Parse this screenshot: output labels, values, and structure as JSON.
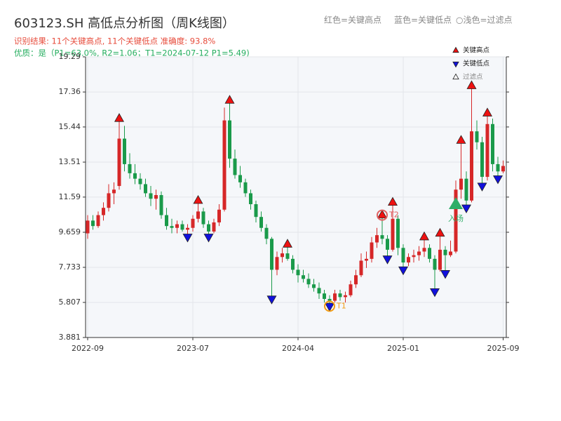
{
  "chart_data": {
    "type": "candlestick",
    "title": "603123.SH 高低点分析图（周K线图）",
    "subtitle": "识别结果: 11个关键高点, 11个关键低点   准确度: 93.8%",
    "quality": "优质：是（P1=63.0%, R2=1.06；T1=2024-07-12 P1=5.49)",
    "notes": [
      "红色=关键高点",
      "蓝色=关键低点",
      "○浅色=过滤点"
    ],
    "up_color": "#d62728",
    "down_color": "#1a9a4a",
    "grid": true,
    "ylim": [
      3.881,
      19.29
    ],
    "yticks": [
      3.881,
      5.807,
      7.733,
      9.659,
      11.59,
      13.51,
      15.44,
      17.36,
      19.29
    ],
    "categories": [
      "2022-09",
      null,
      null,
      null,
      null,
      null,
      null,
      null,
      null,
      null,
      null,
      null,
      null,
      null,
      null,
      null,
      null,
      null,
      null,
      null,
      "2023-07",
      null,
      null,
      null,
      null,
      null,
      null,
      null,
      null,
      null,
      null,
      null,
      null,
      null,
      null,
      null,
      null,
      null,
      null,
      null,
      "2024-04",
      null,
      null,
      null,
      null,
      null,
      null,
      null,
      null,
      null,
      null,
      null,
      null,
      null,
      null,
      null,
      null,
      null,
      null,
      null,
      "2025-01",
      null,
      null,
      null,
      null,
      null,
      null,
      null,
      null,
      null,
      null,
      null,
      null,
      null,
      null,
      null,
      null,
      null,
      null,
      "2025-09"
    ],
    "open": [
      9.6,
      10.3,
      10.0,
      10.6,
      11.0,
      11.8,
      12.2,
      14.8,
      13.4,
      12.9,
      12.6,
      12.3,
      11.8,
      11.5,
      11.7,
      10.6,
      10.0,
      9.9,
      10.1,
      9.8,
      9.9,
      10.4,
      10.8,
      10.1,
      9.7,
      10.2,
      10.9,
      15.8,
      13.7,
      12.8,
      12.4,
      11.8,
      11.2,
      10.5,
      9.9,
      9.3,
      7.6,
      8.3,
      8.5,
      8.2,
      7.6,
      7.3,
      7.1,
      6.8,
      6.6,
      6.3,
      6.0,
      5.9,
      6.3,
      6.1,
      6.2,
      6.8,
      7.3,
      8.1,
      8.2,
      9.1,
      9.5,
      9.3,
      8.7,
      10.4,
      8.8,
      8.0,
      8.3,
      8.4,
      8.6,
      8.8,
      8.2,
      7.6,
      8.7,
      8.4,
      8.6,
      12.0,
      12.6,
      11.4,
      15.2,
      14.6,
      12.7,
      15.6,
      13.4,
      13.0
    ],
    "high": [
      10.6,
      10.6,
      10.8,
      11.3,
      12.3,
      12.4,
      15.9,
      15.5,
      14.0,
      13.4,
      12.9,
      12.6,
      12.2,
      12.0,
      11.9,
      11.0,
      10.4,
      10.3,
      10.3,
      10.1,
      10.6,
      11.4,
      11.0,
      10.3,
      10.4,
      11.2,
      16.5,
      16.9,
      14.2,
      13.3,
      12.6,
      12.0,
      11.4,
      10.8,
      10.1,
      9.4,
      8.6,
      8.8,
      9.0,
      8.4,
      7.9,
      7.6,
      7.4,
      7.1,
      6.9,
      6.5,
      6.2,
      6.5,
      6.5,
      6.4,
      7.0,
      7.6,
      8.5,
      8.6,
      9.4,
      9.9,
      10.6,
      9.5,
      11.3,
      10.6,
      9.0,
      8.5,
      8.7,
      8.9,
      9.4,
      9.0,
      8.4,
      9.6,
      8.9,
      9.2,
      12.5,
      14.7,
      13.0,
      17.7,
      15.8,
      14.9,
      16.2,
      15.9,
      13.8,
      13.6
    ],
    "low": [
      9.3,
      9.8,
      9.9,
      10.3,
      10.8,
      11.2,
      12.0,
      13.0,
      12.6,
      12.3,
      12.0,
      11.6,
      11.1,
      10.9,
      10.4,
      9.8,
      9.6,
      9.6,
      9.7,
      9.4,
      9.7,
      10.2,
      9.9,
      9.4,
      9.6,
      10.0,
      10.8,
      13.2,
      12.6,
      12.1,
      11.6,
      10.9,
      10.2,
      9.7,
      9.0,
      6.0,
      7.3,
      8.0,
      8.1,
      7.4,
      6.9,
      6.9,
      6.6,
      6.4,
      6.0,
      5.8,
      5.6,
      5.8,
      5.9,
      5.8,
      6.1,
      6.6,
      7.2,
      7.7,
      8.0,
      8.8,
      9.0,
      8.2,
      8.6,
      8.4,
      7.6,
      7.8,
      8.0,
      8.1,
      8.3,
      8.0,
      6.4,
      7.5,
      7.4,
      8.3,
      8.5,
      11.5,
      11.0,
      11.3,
      14.2,
      12.2,
      12.5,
      13.0,
      12.6,
      12.9
    ],
    "close": [
      10.3,
      10.0,
      10.6,
      11.0,
      11.8,
      12.0,
      14.8,
      13.4,
      12.9,
      12.6,
      12.3,
      11.8,
      11.5,
      11.7,
      10.6,
      10.0,
      9.9,
      10.1,
      9.8,
      9.9,
      10.4,
      10.8,
      10.1,
      9.7,
      10.2,
      10.9,
      15.8,
      13.7,
      12.8,
      12.4,
      11.8,
      11.2,
      10.5,
      9.9,
      9.3,
      7.6,
      8.3,
      8.5,
      8.2,
      7.6,
      7.3,
      7.1,
      6.8,
      6.6,
      6.3,
      6.0,
      5.9,
      6.3,
      6.1,
      6.2,
      6.8,
      7.3,
      8.1,
      8.2,
      9.1,
      9.5,
      9.3,
      8.7,
      10.4,
      8.8,
      8.0,
      8.3,
      8.4,
      8.6,
      8.8,
      8.2,
      7.6,
      8.7,
      8.4,
      8.6,
      12.0,
      12.6,
      11.4,
      15.2,
      14.6,
      12.7,
      15.6,
      13.4,
      13.0,
      13.3
    ],
    "series": [
      {
        "name": "关键高点",
        "color": "#ee1111",
        "marker": "up",
        "values": [
          null,
          null,
          null,
          null,
          null,
          null,
          15.9,
          null,
          null,
          null,
          null,
          null,
          null,
          null,
          null,
          null,
          null,
          null,
          null,
          null,
          null,
          11.4,
          null,
          null,
          null,
          null,
          null,
          16.9,
          null,
          null,
          null,
          null,
          null,
          null,
          null,
          null,
          null,
          null,
          9,
          null,
          null,
          null,
          null,
          null,
          null,
          null,
          null,
          null,
          null,
          null,
          null,
          null,
          null,
          null,
          null,
          null,
          10.6,
          null,
          11.3,
          null,
          null,
          null,
          null,
          null,
          9.4,
          null,
          null,
          9.6,
          null,
          null,
          null,
          14.7,
          null,
          17.7,
          null,
          null,
          16.2,
          null,
          null,
          null
        ]
      },
      {
        "name": "关键低点",
        "color": "#1111dd",
        "marker": "down",
        "values": [
          null,
          null,
          null,
          null,
          null,
          null,
          null,
          null,
          null,
          null,
          null,
          null,
          null,
          null,
          null,
          null,
          null,
          null,
          null,
          9.4,
          null,
          null,
          null,
          9.4,
          null,
          null,
          null,
          null,
          null,
          null,
          null,
          null,
          null,
          null,
          null,
          6,
          null,
          null,
          null,
          null,
          null,
          null,
          null,
          null,
          null,
          null,
          5.6,
          null,
          null,
          null,
          null,
          null,
          null,
          null,
          null,
          null,
          null,
          8.2,
          null,
          null,
          7.6,
          null,
          null,
          null,
          null,
          null,
          6.4,
          null,
          7.4,
          null,
          null,
          null,
          11,
          null,
          null,
          12.2,
          null,
          null,
          12.6,
          null
        ]
      },
      {
        "name": "过滤点",
        "color": "#ffffff",
        "marker": "up",
        "values": [
          null,
          null,
          null,
          null,
          null,
          null,
          null,
          null,
          null,
          null,
          null,
          null,
          null,
          null,
          null,
          null,
          null,
          null,
          null,
          null,
          null,
          null,
          null,
          null,
          null,
          null,
          null,
          null,
          null,
          null,
          null,
          null,
          null,
          null,
          null,
          null,
          null,
          null,
          null,
          null,
          null,
          null,
          null,
          null,
          null,
          null,
          null,
          null,
          null,
          null,
          null,
          null,
          null,
          null,
          null,
          null,
          null,
          null,
          null,
          null,
          null,
          null,
          null,
          null,
          null,
          null,
          null,
          null,
          null,
          null,
          null,
          null,
          null,
          null,
          null,
          null,
          null,
          null,
          null,
          null
        ]
      }
    ],
    "annotations": [
      {
        "text": "T1",
        "x": 46,
        "y": 5.6,
        "color": "#f39c12",
        "shape": "circle"
      },
      {
        "text": "T2",
        "x": 56,
        "y": 10.6,
        "color": "#e06060",
        "shape": "circle"
      },
      {
        "text": "入场",
        "x": 70,
        "y": 11.2,
        "color": "#2fae68",
        "shape": "triangle"
      }
    ]
  }
}
